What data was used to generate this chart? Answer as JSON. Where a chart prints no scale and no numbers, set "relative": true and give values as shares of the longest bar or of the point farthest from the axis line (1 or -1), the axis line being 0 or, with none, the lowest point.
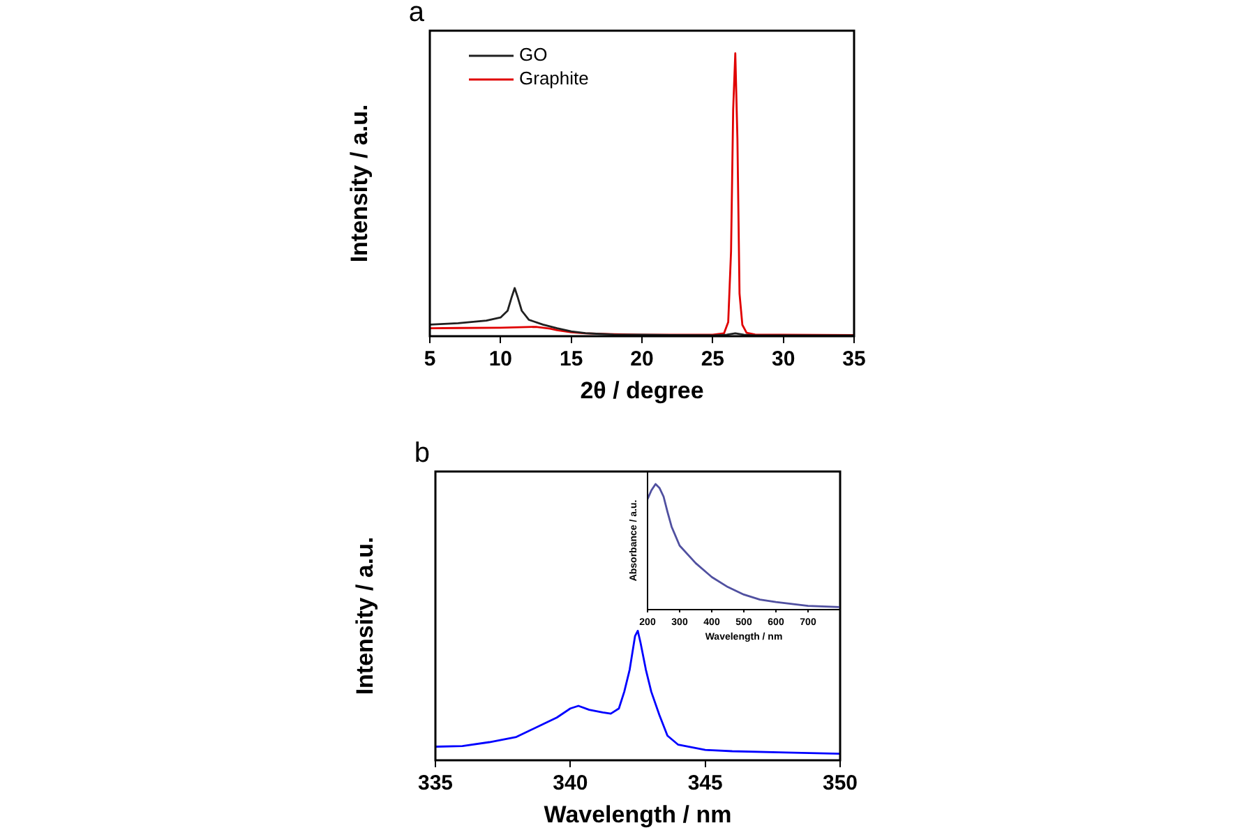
{
  "chart_data": [
    {
      "type": "line",
      "title": "a",
      "xlabel": "2θ / degree",
      "ylabel": "Intensity / a.u.",
      "relative": true,
      "xlim": [
        5,
        35
      ],
      "xticks": [
        5,
        10,
        15,
        20,
        25,
        30,
        35
      ],
      "legend": "top left",
      "series": [
        {
          "name": "GO",
          "color": "#202020",
          "x": [
            5,
            7,
            9,
            10,
            10.5,
            10.8,
            11,
            11.2,
            11.5,
            12,
            13,
            14,
            15,
            16,
            17,
            18,
            20,
            22,
            25,
            26,
            26.6,
            27.2,
            28,
            30,
            32,
            35
          ],
          "values": [
            0.041,
            0.046,
            0.055,
            0.066,
            0.09,
            0.14,
            0.17,
            0.14,
            0.09,
            0.058,
            0.041,
            0.028,
            0.017,
            0.011,
            0.008,
            0.006,
            0.005,
            0.004,
            0.003,
            0.005,
            0.01,
            0.005,
            0.003,
            0.003,
            0.003,
            0.003
          ]
        },
        {
          "name": "Graphite",
          "color": "#e00000",
          "x": [
            5,
            7,
            10,
            12.5,
            13.5,
            14,
            15,
            16,
            18,
            20,
            25,
            25.8,
            26.1,
            26.3,
            26.45,
            26.6,
            26.75,
            26.9,
            27.1,
            27.4,
            28,
            30,
            35
          ],
          "values": [
            0.028,
            0.029,
            0.03,
            0.033,
            0.027,
            0.021,
            0.014,
            0.01,
            0.007,
            0.005,
            0.005,
            0.01,
            0.05,
            0.3,
            0.8,
            1,
            0.7,
            0.15,
            0.04,
            0.012,
            0.006,
            0.005,
            0.004
          ]
        }
      ]
    },
    {
      "type": "line",
      "annotations": [
        "b"
      ],
      "xlabel": "Wavelength / nm",
      "ylabel": "Intensity / a.u.",
      "relative": true,
      "xlim": [
        335,
        350
      ],
      "xticks": [
        335,
        340,
        345,
        350
      ],
      "series": [
        {
          "color": "#0000ff",
          "x": [
            335,
            336,
            337,
            338,
            338.5,
            339,
            339.5,
            340,
            340.3,
            340.7,
            341.2,
            341.5,
            341.8,
            342,
            342.2,
            342.4,
            342.5,
            342.6,
            342.8,
            343,
            343.3,
            343.6,
            344,
            345,
            346,
            348,
            350
          ],
          "values": [
            0.105,
            0.11,
            0.14,
            0.18,
            0.23,
            0.28,
            0.33,
            0.4,
            0.42,
            0.39,
            0.37,
            0.36,
            0.4,
            0.53,
            0.7,
            0.96,
            1,
            0.91,
            0.7,
            0.53,
            0.35,
            0.19,
            0.12,
            0.08,
            0.07,
            0.06,
            0.05
          ]
        }
      ]
    },
    {
      "type": "line",
      "xlabel": "Wavelength / nm",
      "ylabel": "Absorbance / a.u.",
      "relative": true,
      "xlim": [
        200,
        800
      ],
      "xticks": [
        200,
        300,
        400,
        500,
        600,
        700
      ],
      "series": [
        {
          "color": "#5050a0",
          "x": [
            200,
            212,
            225,
            237,
            250,
            262,
            275,
            300,
            350,
            400,
            450,
            500,
            550,
            600,
            700,
            800
          ],
          "values": [
            0.88,
            0.95,
            1,
            0.97,
            0.9,
            0.78,
            0.66,
            0.51,
            0.37,
            0.26,
            0.18,
            0.12,
            0.08,
            0.06,
            0.03,
            0.02
          ]
        }
      ]
    }
  ]
}
